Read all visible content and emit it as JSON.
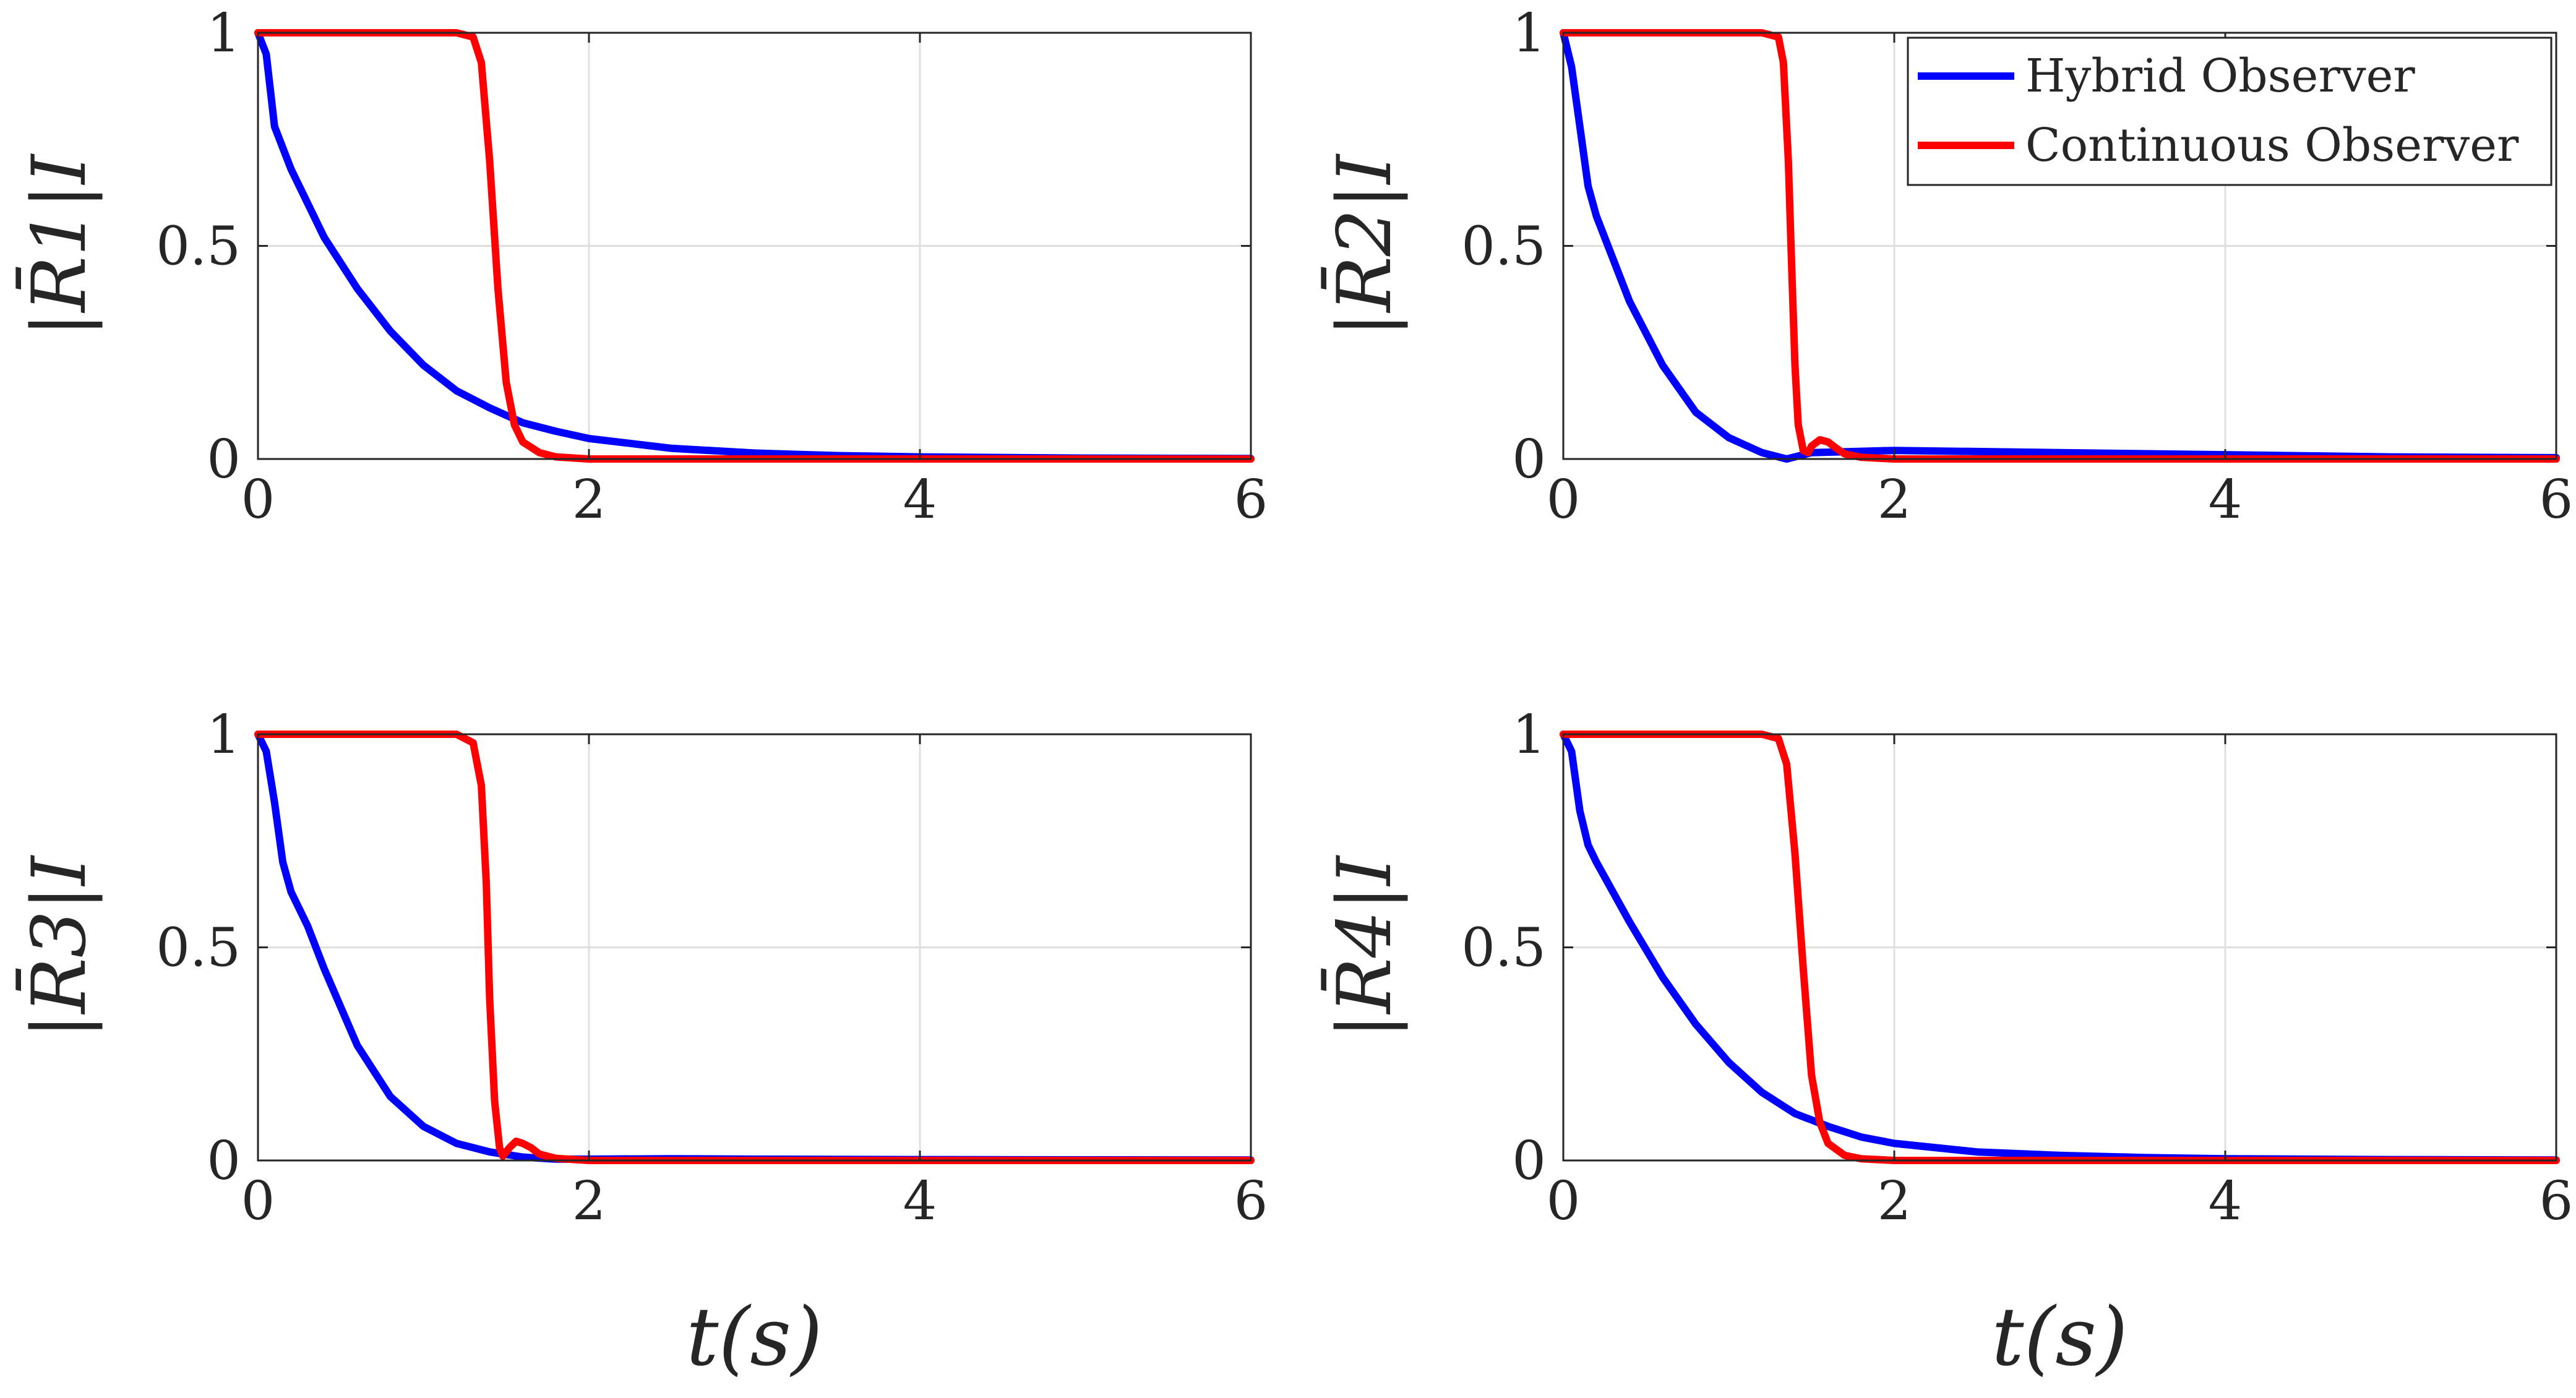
{
  "chart_data": [
    {
      "type": "line",
      "ylabel": "|R̄1|I",
      "xlabel": "",
      "xlim": [
        0,
        6
      ],
      "ylim": [
        0,
        1
      ],
      "x_ticks": [
        "0",
        "2",
        "4",
        "6"
      ],
      "y_ticks": [
        "0",
        "0.5",
        "1"
      ],
      "grid": true,
      "series": [
        {
          "name": "Hybrid Observer",
          "color": "#0000FF",
          "x": [
            0,
            0.05,
            0.1,
            0.2,
            0.4,
            0.6,
            0.8,
            1.0,
            1.2,
            1.4,
            1.6,
            1.8,
            2.0,
            2.5,
            3.0,
            3.5,
            4.0,
            5.0,
            6.0
          ],
          "y": [
            1.0,
            0.95,
            0.78,
            0.68,
            0.52,
            0.4,
            0.3,
            0.22,
            0.16,
            0.12,
            0.085,
            0.065,
            0.048,
            0.025,
            0.014,
            0.008,
            0.005,
            0.002,
            0.001
          ]
        },
        {
          "name": "Continuous Observer",
          "color": "#FF0000",
          "x": [
            0,
            1.2,
            1.3,
            1.35,
            1.4,
            1.45,
            1.5,
            1.55,
            1.6,
            1.7,
            1.8,
            2.0,
            3.0,
            6.0
          ],
          "y": [
            1.0,
            1.0,
            0.99,
            0.93,
            0.7,
            0.4,
            0.18,
            0.08,
            0.04,
            0.015,
            0.005,
            0.0,
            0.0,
            0.0
          ]
        }
      ]
    },
    {
      "type": "line",
      "ylabel": "|R̄2|I",
      "xlabel": "",
      "xlim": [
        0,
        6
      ],
      "ylim": [
        0,
        1
      ],
      "x_ticks": [
        "0",
        "2",
        "4",
        "6"
      ],
      "y_ticks": [
        "0",
        "0.5",
        "1"
      ],
      "grid": true,
      "legend": {
        "placement": "top-right",
        "entries": [
          "Hybrid Observer",
          "Continuous Observer"
        ]
      },
      "series": [
        {
          "name": "Hybrid Observer",
          "color": "#0000FF",
          "x": [
            0,
            0.05,
            0.1,
            0.15,
            0.2,
            0.4,
            0.6,
            0.8,
            1.0,
            1.2,
            1.3,
            1.35,
            1.4,
            1.5,
            2.0,
            3.0,
            4.0,
            5.0,
            6.0
          ],
          "y": [
            1.0,
            0.92,
            0.78,
            0.64,
            0.57,
            0.37,
            0.22,
            0.11,
            0.05,
            0.015,
            0.005,
            0.0,
            0.005,
            0.015,
            0.02,
            0.015,
            0.01,
            0.005,
            0.003
          ]
        },
        {
          "name": "Continuous Observer",
          "color": "#FF0000",
          "x": [
            0,
            1.2,
            1.3,
            1.33,
            1.36,
            1.38,
            1.4,
            1.42,
            1.45,
            1.48,
            1.5,
            1.55,
            1.6,
            1.65,
            1.7,
            1.8,
            2.0,
            3.0,
            6.0
          ],
          "y": [
            1.0,
            1.0,
            0.99,
            0.93,
            0.7,
            0.45,
            0.22,
            0.08,
            0.02,
            0.015,
            0.03,
            0.045,
            0.04,
            0.025,
            0.012,
            0.004,
            0.0,
            0.0,
            0.0
          ]
        }
      ]
    },
    {
      "type": "line",
      "ylabel": "|R̄3|I",
      "xlabel": "t(s)",
      "xlim": [
        0,
        6
      ],
      "ylim": [
        0,
        1
      ],
      "x_ticks": [
        "0",
        "2",
        "4",
        "6"
      ],
      "y_ticks": [
        "0",
        "0.5",
        "1"
      ],
      "grid": true,
      "series": [
        {
          "name": "Hybrid Observer",
          "color": "#0000FF",
          "x": [
            0,
            0.05,
            0.1,
            0.15,
            0.2,
            0.3,
            0.4,
            0.6,
            0.8,
            1.0,
            1.2,
            1.4,
            1.6,
            1.8,
            2.0,
            2.5,
            3.0,
            4.0,
            6.0
          ],
          "y": [
            1.0,
            0.96,
            0.84,
            0.7,
            0.63,
            0.55,
            0.45,
            0.27,
            0.15,
            0.08,
            0.04,
            0.02,
            0.008,
            0.003,
            0.003,
            0.004,
            0.003,
            0.002,
            0.001
          ]
        },
        {
          "name": "Continuous Observer",
          "color": "#FF0000",
          "x": [
            0,
            1.2,
            1.3,
            1.35,
            1.38,
            1.4,
            1.43,
            1.46,
            1.48,
            1.52,
            1.56,
            1.6,
            1.65,
            1.7,
            1.8,
            2.0,
            3.0,
            6.0
          ],
          "y": [
            1.0,
            1.0,
            0.98,
            0.88,
            0.65,
            0.38,
            0.14,
            0.03,
            0.01,
            0.03,
            0.045,
            0.04,
            0.03,
            0.015,
            0.005,
            0.0,
            0.0,
            0.0
          ]
        }
      ]
    },
    {
      "type": "line",
      "ylabel": "|R̄4|I",
      "xlabel": "t(s)",
      "xlim": [
        0,
        6
      ],
      "ylim": [
        0,
        1
      ],
      "x_ticks": [
        "0",
        "2",
        "4",
        "6"
      ],
      "y_ticks": [
        "0",
        "0.5",
        "1"
      ],
      "grid": true,
      "series": [
        {
          "name": "Hybrid Observer",
          "color": "#0000FF",
          "x": [
            0,
            0.05,
            0.1,
            0.15,
            0.2,
            0.4,
            0.6,
            0.8,
            1.0,
            1.2,
            1.4,
            1.6,
            1.8,
            2.0,
            2.5,
            3.0,
            3.5,
            4.0,
            5.0,
            6.0
          ],
          "y": [
            1.0,
            0.96,
            0.82,
            0.74,
            0.7,
            0.56,
            0.43,
            0.32,
            0.23,
            0.16,
            0.11,
            0.08,
            0.055,
            0.04,
            0.02,
            0.012,
            0.007,
            0.004,
            0.002,
            0.001
          ]
        },
        {
          "name": "Continuous Observer",
          "color": "#FF0000",
          "x": [
            0,
            1.2,
            1.3,
            1.35,
            1.4,
            1.45,
            1.5,
            1.55,
            1.6,
            1.7,
            1.8,
            2.0,
            3.0,
            6.0
          ],
          "y": [
            1.0,
            1.0,
            0.99,
            0.93,
            0.72,
            0.45,
            0.2,
            0.09,
            0.04,
            0.012,
            0.004,
            0.0,
            0.0,
            0.0
          ]
        }
      ]
    }
  ]
}
